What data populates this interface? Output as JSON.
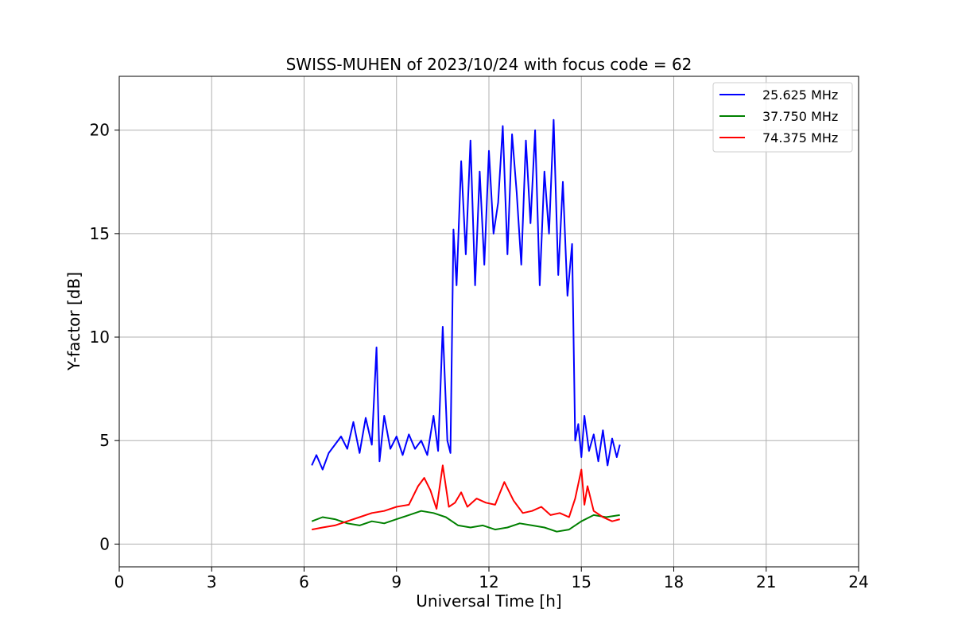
{
  "chart_data": {
    "type": "line",
    "title": "SWISS-MUHEN of 2023/10/24 with focus code = 62",
    "xlabel": "Universal Time [h]",
    "ylabel": "Y-factor [dB]",
    "xlim": [
      0,
      24
    ],
    "ylim": [
      -1.1,
      22.6
    ],
    "xticks": [
      0,
      3,
      6,
      9,
      12,
      15,
      18,
      21,
      24
    ],
    "yticks": [
      0,
      5,
      10,
      15,
      20
    ],
    "grid": true,
    "legend_position": "top-right",
    "series": [
      {
        "name": "25.625 MHz",
        "color": "#0000ff",
        "x": [
          6.25,
          6.4,
          6.6,
          6.8,
          7.0,
          7.2,
          7.4,
          7.6,
          7.8,
          8.0,
          8.2,
          8.35,
          8.45,
          8.6,
          8.8,
          9.0,
          9.2,
          9.4,
          9.6,
          9.8,
          10.0,
          10.2,
          10.35,
          10.5,
          10.65,
          10.75,
          10.85,
          10.95,
          11.1,
          11.25,
          11.4,
          11.55,
          11.7,
          11.85,
          12.0,
          12.15,
          12.3,
          12.45,
          12.6,
          12.75,
          12.9,
          13.05,
          13.2,
          13.35,
          13.5,
          13.65,
          13.8,
          13.95,
          14.1,
          14.25,
          14.4,
          14.55,
          14.7,
          14.8,
          14.9,
          15.0,
          15.1,
          15.25,
          15.4,
          15.55,
          15.7,
          15.85,
          16.0,
          16.15,
          16.25
        ],
        "values": [
          3.8,
          4.3,
          3.6,
          4.4,
          4.8,
          5.2,
          4.6,
          5.9,
          4.4,
          6.1,
          4.8,
          9.5,
          4.0,
          6.2,
          4.6,
          5.2,
          4.3,
          5.3,
          4.6,
          5.0,
          4.3,
          6.2,
          4.5,
          10.5,
          5.0,
          4.4,
          15.2,
          12.5,
          18.5,
          14.0,
          19.5,
          12.5,
          18.0,
          13.5,
          19.0,
          15.0,
          16.5,
          20.2,
          14.0,
          19.8,
          17.0,
          13.5,
          19.5,
          15.5,
          20.0,
          12.5,
          18.0,
          15.0,
          20.5,
          13.0,
          17.5,
          12.0,
          14.5,
          5.0,
          5.8,
          4.2,
          6.2,
          4.5,
          5.3,
          4.0,
          5.5,
          3.8,
          5.1,
          4.2,
          4.8
        ]
      },
      {
        "name": "37.750 MHz",
        "color": "#008000",
        "x": [
          6.25,
          6.6,
          7.0,
          7.4,
          7.8,
          8.2,
          8.6,
          9.0,
          9.4,
          9.8,
          10.2,
          10.6,
          11.0,
          11.4,
          11.8,
          12.2,
          12.6,
          13.0,
          13.4,
          13.8,
          14.2,
          14.6,
          15.0,
          15.4,
          15.8,
          16.25
        ],
        "values": [
          1.1,
          1.3,
          1.2,
          1.0,
          0.9,
          1.1,
          1.0,
          1.2,
          1.4,
          1.6,
          1.5,
          1.3,
          0.9,
          0.8,
          0.9,
          0.7,
          0.8,
          1.0,
          0.9,
          0.8,
          0.6,
          0.7,
          1.1,
          1.4,
          1.3,
          1.4
        ]
      },
      {
        "name": "74.375 MHz",
        "color": "#ff0000",
        "x": [
          6.25,
          6.6,
          7.0,
          7.4,
          7.8,
          8.2,
          8.6,
          9.0,
          9.4,
          9.7,
          9.9,
          10.1,
          10.3,
          10.5,
          10.7,
          10.9,
          11.1,
          11.3,
          11.6,
          11.9,
          12.2,
          12.5,
          12.8,
          13.1,
          13.4,
          13.7,
          14.0,
          14.3,
          14.6,
          14.8,
          15.0,
          15.1,
          15.2,
          15.4,
          15.7,
          16.0,
          16.25
        ],
        "values": [
          0.7,
          0.8,
          0.9,
          1.1,
          1.3,
          1.5,
          1.6,
          1.8,
          1.9,
          2.8,
          3.2,
          2.6,
          1.7,
          3.8,
          1.8,
          2.0,
          2.5,
          1.8,
          2.2,
          2.0,
          1.9,
          3.0,
          2.1,
          1.5,
          1.6,
          1.8,
          1.4,
          1.5,
          1.3,
          2.2,
          3.6,
          1.9,
          2.8,
          1.6,
          1.3,
          1.1,
          1.2
        ]
      }
    ]
  }
}
